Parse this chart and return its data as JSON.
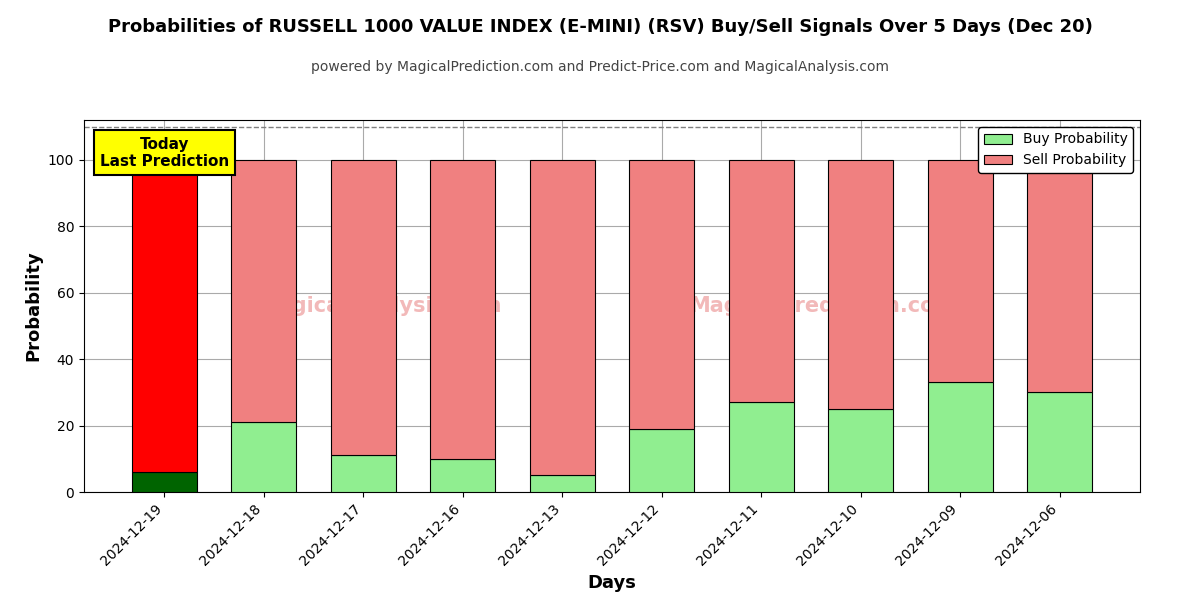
{
  "title": "Probabilities of RUSSELL 1000 VALUE INDEX (E-MINI) (RSV) Buy/Sell Signals Over 5 Days (Dec 20)",
  "subtitle": "powered by MagicalPrediction.com and Predict-Price.com and MagicalAnalysis.com",
  "xlabel": "Days",
  "ylabel": "Probability",
  "categories": [
    "2024-12-19",
    "2024-12-18",
    "2024-12-17",
    "2024-12-16",
    "2024-12-13",
    "2024-12-12",
    "2024-12-11",
    "2024-12-10",
    "2024-12-09",
    "2024-12-06"
  ],
  "buy_values": [
    6,
    21,
    11,
    10,
    5,
    19,
    27,
    25,
    33,
    30
  ],
  "sell_values": [
    94,
    79,
    89,
    90,
    95,
    81,
    73,
    75,
    67,
    70
  ],
  "buy_color_first": "#006400",
  "buy_color_rest": "#90EE90",
  "sell_color_first": "#FF0000",
  "sell_color_rest": "#F08080",
  "bar_edge_color": "#000000",
  "today_box_color": "#FFFF00",
  "today_text": "Today\nLast Prediction",
  "ylim": [
    0,
    112
  ],
  "dashed_line_y": 110,
  "legend_buy_label": "Buy Probability",
  "legend_sell_label": "Sell Probability",
  "grid_color": "#aaaaaa",
  "background_color": "#ffffff"
}
